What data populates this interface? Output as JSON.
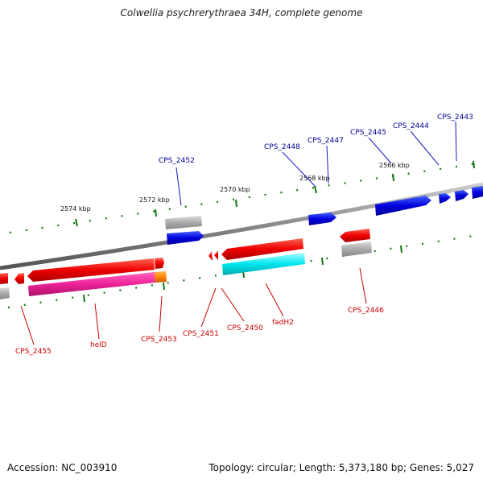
{
  "title": "Colwellia psychrerythraea 34H, complete genome",
  "footer": {
    "accession": "Accession: NC_003910",
    "topology": "Topology: circular; Length: 5,373,180 bp; Genes: 5,027"
  },
  "kbp_labels": [
    "2574 kbp",
    "2572 kbp",
    "2570 kbp",
    "2568 kbp",
    "2566 kbp"
  ],
  "genes_forward": [
    "CPS_2452",
    "CPS_2448",
    "CPS_2447",
    "CPS_2445",
    "CPS_2444",
    "CPS_2443"
  ],
  "genes_reverse": [
    "CPS_2455",
    "helD",
    "CPS_2453",
    "CPS_2451",
    "CPS_2450",
    "fadH2",
    "CPS_2446"
  ],
  "colors": {
    "forward": "#0000dd",
    "reverse": "#ee0000",
    "forward_label": "#000099",
    "reverse_label": "#cc0000",
    "pseudo": "#aaaaaa",
    "magenta": "#ee2299",
    "cyan": "#00e5ee",
    "orange": "#ff8800",
    "tick": "#117711",
    "backbone": "#888888"
  }
}
